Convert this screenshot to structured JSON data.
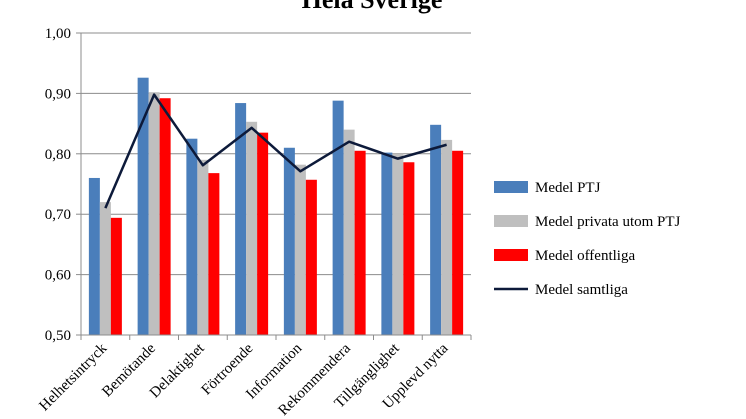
{
  "chart_data": {
    "type": "bar",
    "title": "Hela Sverige",
    "categories": [
      "Helhetsintryck",
      "Bemötande",
      "Delaktighet",
      "Förtroende",
      "Information",
      "Rekommendera",
      "Tillgänglighet",
      "Upplevd nytta"
    ],
    "series": [
      {
        "name": "Medel PTJ",
        "type": "bar",
        "color": "#4a7ebb",
        "values": [
          0.76,
          0.926,
          0.825,
          0.884,
          0.81,
          0.888,
          0.802,
          0.848
        ]
      },
      {
        "name": "Medel privata utom PTJ",
        "type": "bar",
        "color": "#bfbfbf",
        "values": [
          0.72,
          0.902,
          0.79,
          0.853,
          0.782,
          0.84,
          0.8,
          0.823
        ]
      },
      {
        "name": "Medel offentliga",
        "type": "bar",
        "color": "#ff0000",
        "values": [
          0.694,
          0.892,
          0.768,
          0.835,
          0.757,
          0.805,
          0.786,
          0.805
        ]
      },
      {
        "name": "Medel samtliga",
        "type": "line",
        "color": "#0d1a3a",
        "values": [
          0.71,
          0.898,
          0.781,
          0.843,
          0.771,
          0.82,
          0.792,
          0.815
        ]
      }
    ],
    "ylim": [
      0.5,
      1.0
    ],
    "yticks": [
      "0,50",
      "0,60",
      "0,70",
      "0,80",
      "0,90",
      "1,00"
    ],
    "grid": true,
    "legend": "right",
    "xlabel": "",
    "ylabel": ""
  }
}
